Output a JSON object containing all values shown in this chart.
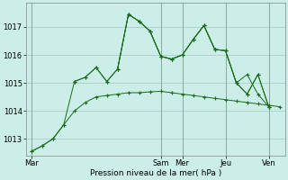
{
  "background_color": "#cceee8",
  "grid_color": "#aacccc",
  "line_color": "#1a6b1a",
  "xlabel": "Pression niveau de la mer( hPa )",
  "day_labels": [
    "Mar",
    "Sam",
    "Mer",
    "Jeu",
    "Ven"
  ],
  "day_positions": [
    0,
    24,
    28,
    36,
    44
  ],
  "xlim": [
    -1,
    47
  ],
  "ylim": [
    1012.4,
    1017.85
  ],
  "yticks": [
    1013,
    1014,
    1015,
    1016,
    1017
  ],
  "series1_x": [
    0,
    2,
    4,
    6,
    8,
    10,
    12,
    14,
    16,
    18,
    20,
    22,
    24,
    26,
    28,
    30,
    32,
    34,
    36,
    38,
    40,
    42,
    44,
    46
  ],
  "series1_y": [
    1012.55,
    1012.75,
    1013.0,
    1013.5,
    1014.0,
    1014.3,
    1014.5,
    1014.55,
    1014.6,
    1014.65,
    1014.65,
    1014.68,
    1014.7,
    1014.65,
    1014.6,
    1014.55,
    1014.5,
    1014.45,
    1014.4,
    1014.35,
    1014.3,
    1014.25,
    1014.2,
    1014.15
  ],
  "series2_x": [
    0,
    2,
    4,
    6,
    8,
    10,
    12,
    14,
    16,
    18,
    20,
    22,
    24,
    26,
    28,
    30,
    32,
    34,
    36,
    38,
    40,
    42,
    44
  ],
  "series2_y": [
    1012.55,
    1012.75,
    1013.0,
    1013.5,
    1015.05,
    1015.2,
    1015.55,
    1015.05,
    1015.5,
    1017.45,
    1017.2,
    1016.85,
    1015.95,
    1015.85,
    1016.0,
    1016.55,
    1017.05,
    1016.2,
    1016.15,
    1015.0,
    1015.3,
    1014.6,
    1014.15
  ],
  "series3_x": [
    8,
    10,
    12,
    14,
    16,
    18,
    20,
    22,
    24,
    26,
    28,
    30,
    32,
    34,
    36,
    38,
    40,
    42,
    44
  ],
  "series3_y": [
    1015.05,
    1015.2,
    1015.55,
    1015.05,
    1015.5,
    1017.45,
    1017.2,
    1016.85,
    1015.95,
    1015.85,
    1016.0,
    1016.55,
    1017.05,
    1016.2,
    1016.15,
    1015.0,
    1014.6,
    1015.3,
    1014.15
  ],
  "series4_x": [
    16,
    18,
    20,
    22,
    24,
    26,
    28,
    30,
    32,
    34,
    36,
    38,
    40,
    42,
    44
  ],
  "series4_y": [
    1015.5,
    1017.45,
    1017.2,
    1016.85,
    1015.95,
    1015.85,
    1016.0,
    1016.55,
    1017.05,
    1016.2,
    1016.15,
    1015.0,
    1014.6,
    1015.3,
    1014.15
  ]
}
